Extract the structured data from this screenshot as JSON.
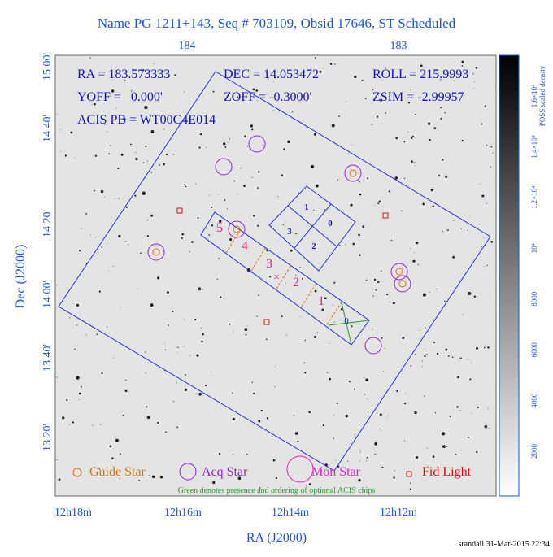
{
  "header": {
    "title": "Name PG 1211+143, Seq # 703109, Obsid 17646, ST Scheduled",
    "ra": "RA = 183.573333",
    "dec": "DEC = 14.053472",
    "roll": "ROLL = 215.9993",
    "yoff": "YOFF =   0.000'",
    "zoff": "ZOFF = -0.3000'",
    "zsim": "ZSIM = -2.99957",
    "acis": "ACIS PB = WT00C4E014"
  },
  "axes": {
    "top_ticks": [
      "184",
      "183"
    ],
    "bottom_ticks": [
      "12h18m",
      "12h16m",
      "12h14m",
      "12h12m"
    ],
    "left_ticks": [
      "15 00'",
      "14 40'",
      "14 20'",
      "14 00'",
      "13 40'",
      "13 20'"
    ],
    "x_label": "RA (J2000)",
    "y_label": "Dec (J2000)"
  },
  "colorbar": {
    "label": "POSS scaled density",
    "ticks": [
      "2000",
      "4000",
      "6000",
      "8000",
      "10⁴",
      "1.2×10⁴",
      "1.4×10⁴",
      "1.6×10⁴"
    ]
  },
  "chips": {
    "acis_i": [
      "1",
      "0",
      "3",
      "2"
    ],
    "acis_s": [
      "5",
      "4",
      "3",
      "2",
      "1",
      "0"
    ]
  },
  "legend": [
    "Guide Star",
    "Acq Star",
    "Mon Star",
    "Fid Light"
  ],
  "note": "Green denotes presence and ordering of optional ACIS chips",
  "footer": "srandall 31-Mar-2015 22:34"
}
